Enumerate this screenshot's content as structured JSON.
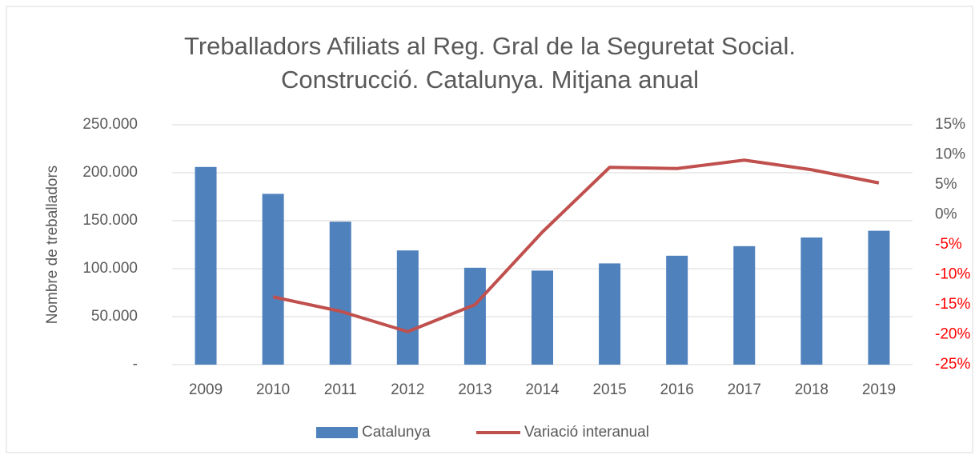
{
  "chart_data": {
    "type": "bar-line",
    "title": [
      "Treballadors Afiliats al Reg. Gral de la Seguretat Social.",
      "Construcció. Catalunya. Mitjana anual"
    ],
    "y_label": "Nombre de treballadors",
    "categories": [
      "2009",
      "2010",
      "2011",
      "2012",
      "2013",
      "2014",
      "2015",
      "2016",
      "2017",
      "2018",
      "2019"
    ],
    "series": [
      {
        "name": "Catalunya",
        "type": "bar",
        "color": "#4f81bd",
        "values": [
          206000,
          178000,
          149000,
          119000,
          101000,
          98000,
          105500,
          113500,
          123500,
          132500,
          139500
        ]
      },
      {
        "name": "Variació interanual",
        "type": "line",
        "axis": "y2",
        "color": "#c0504d",
        "values": [
          null,
          -13.7,
          -16.1,
          -19.5,
          -15,
          -2.9,
          7.9,
          7.7,
          9.1,
          7.5,
          5.3
        ]
      }
    ],
    "ylim": [
      0,
      250000
    ],
    "yticks": [
      {
        "value": 0,
        "label": "-"
      },
      {
        "value": 50000,
        "label": "50.000"
      },
      {
        "value": 100000,
        "label": "100.000"
      },
      {
        "value": 150000,
        "label": "150.000"
      },
      {
        "value": 200000,
        "label": "200.000"
      },
      {
        "value": 250000,
        "label": "250.000"
      }
    ],
    "y2lim": [
      -25,
      15
    ],
    "y2ticks": [
      {
        "value": -25,
        "label": "-25%"
      },
      {
        "value": -20,
        "label": "-20%"
      },
      {
        "value": -15,
        "label": "-15%"
      },
      {
        "value": -10,
        "label": "-10%"
      },
      {
        "value": -5,
        "label": "-5%"
      },
      {
        "value": 0,
        "label": "0%"
      },
      {
        "value": 5,
        "label": "5%"
      },
      {
        "value": 10,
        "label": "10%"
      },
      {
        "value": 15,
        "label": "15%"
      }
    ],
    "negative_tick_color": "#ff0000",
    "grid": true,
    "legend": "bottom"
  }
}
